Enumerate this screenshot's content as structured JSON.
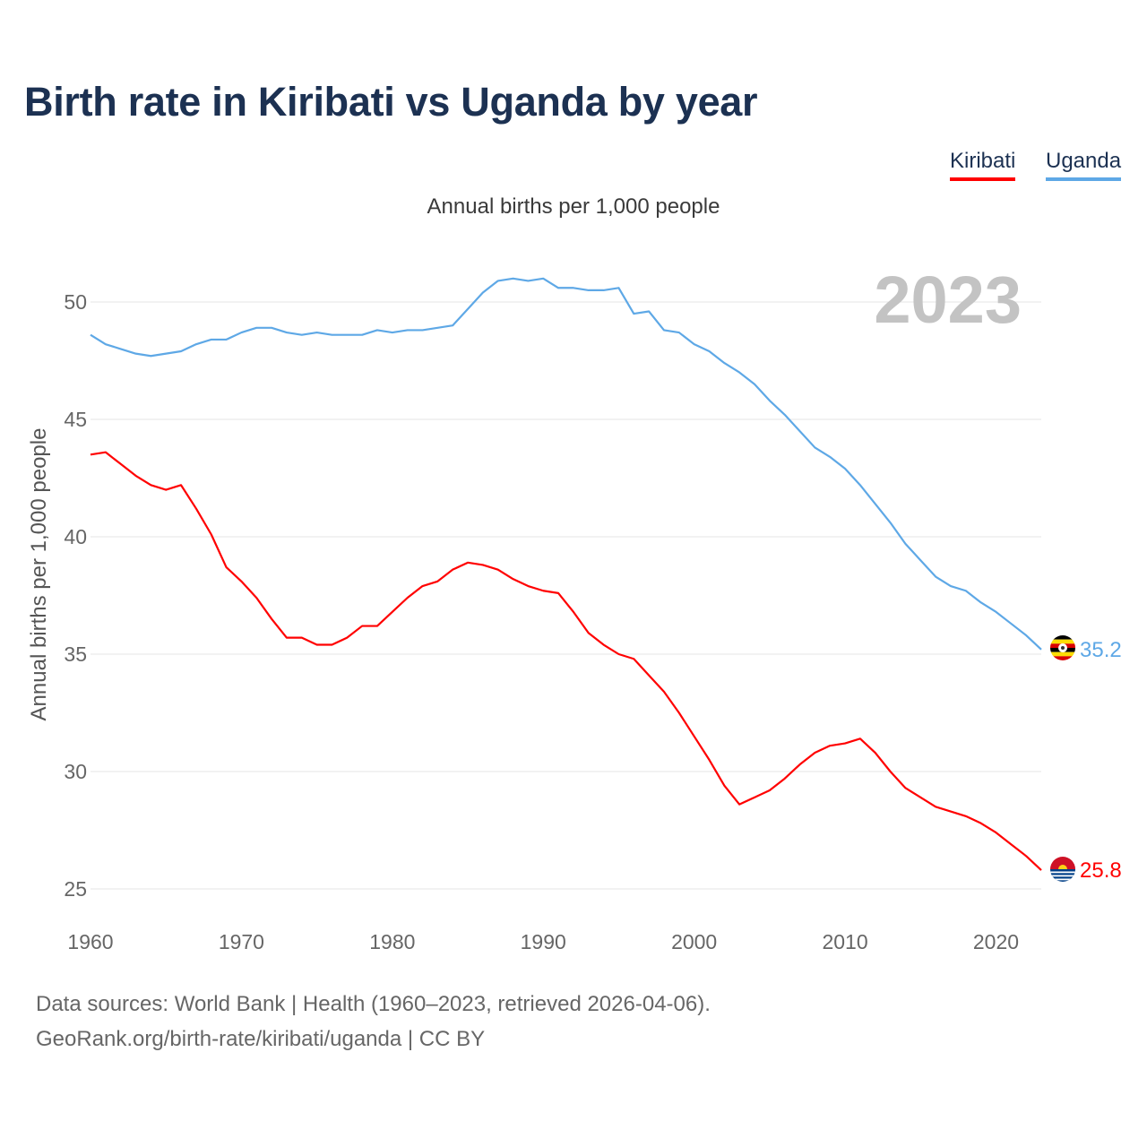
{
  "title": "Birth rate in Kiribati vs Uganda by year",
  "subtitle": "Annual births per 1,000 people",
  "year_label": "2023",
  "legend": [
    {
      "name": "Kiribati",
      "color": "#ff0000"
    },
    {
      "name": "Uganda",
      "color": "#5ea8e6"
    }
  ],
  "source_line1": "Data sources: World Bank | Health (1960–2023, retrieved 2026-04-06).",
  "source_line2": "GeoRank.org/birth-rate/kiribati/uganda | CC BY",
  "chart_data": {
    "type": "line",
    "title": "Birth rate in Kiribati vs Uganda by year",
    "xlabel": "",
    "ylabel": "Annual births per 1,000 people",
    "xlim": [
      1960,
      2023
    ],
    "ylim": [
      25,
      52
    ],
    "xticks": [
      1960,
      1970,
      1980,
      1990,
      2000,
      2010,
      2020
    ],
    "yticks": [
      25,
      30,
      35,
      40,
      45,
      50
    ],
    "grid": true,
    "x": [
      1960,
      1961,
      1962,
      1963,
      1964,
      1965,
      1966,
      1967,
      1968,
      1969,
      1970,
      1971,
      1972,
      1973,
      1974,
      1975,
      1976,
      1977,
      1978,
      1979,
      1980,
      1981,
      1982,
      1983,
      1984,
      1985,
      1986,
      1987,
      1988,
      1989,
      1990,
      1991,
      1992,
      1993,
      1994,
      1995,
      1996,
      1997,
      1998,
      1999,
      2000,
      2001,
      2002,
      2003,
      2004,
      2005,
      2006,
      2007,
      2008,
      2009,
      2010,
      2011,
      2012,
      2013,
      2014,
      2015,
      2016,
      2017,
      2018,
      2019,
      2020,
      2021,
      2022,
      2023
    ],
    "series": [
      {
        "name": "Kiribati",
        "color": "#ff0000",
        "end_label": "25.8",
        "values": [
          43.5,
          43.6,
          43.1,
          42.6,
          42.2,
          42.0,
          42.2,
          41.2,
          40.1,
          38.7,
          38.1,
          37.4,
          36.5,
          35.7,
          35.7,
          35.4,
          35.4,
          35.7,
          36.2,
          36.2,
          36.8,
          37.4,
          37.9,
          38.1,
          38.6,
          38.9,
          38.8,
          38.6,
          38.2,
          37.9,
          37.7,
          37.6,
          36.8,
          35.9,
          35.4,
          35.0,
          34.8,
          34.1,
          33.4,
          32.5,
          31.5,
          30.5,
          29.4,
          28.6,
          28.9,
          29.2,
          29.7,
          30.3,
          30.8,
          31.1,
          31.2,
          31.4,
          30.8,
          30.0,
          29.3,
          28.9,
          28.5,
          28.3,
          28.1,
          27.8,
          27.4,
          26.9,
          26.4,
          25.8
        ]
      },
      {
        "name": "Uganda",
        "color": "#5ea8e6",
        "end_label": "35.2",
        "values": [
          48.6,
          48.2,
          48.0,
          47.8,
          47.7,
          47.8,
          47.9,
          48.2,
          48.4,
          48.4,
          48.7,
          48.9,
          48.9,
          48.7,
          48.6,
          48.7,
          48.6,
          48.6,
          48.6,
          48.8,
          48.7,
          48.8,
          48.8,
          48.9,
          49.0,
          49.7,
          50.4,
          50.9,
          51.0,
          50.9,
          51.0,
          50.6,
          50.6,
          50.5,
          50.5,
          50.6,
          49.5,
          49.6,
          48.8,
          48.7,
          48.2,
          47.9,
          47.4,
          47.0,
          46.5,
          45.8,
          45.2,
          44.5,
          43.8,
          43.4,
          42.9,
          42.2,
          41.4,
          40.6,
          39.7,
          39.0,
          38.3,
          37.9,
          37.7,
          37.2,
          36.8,
          36.3,
          35.8,
          35.2
        ]
      }
    ]
  }
}
